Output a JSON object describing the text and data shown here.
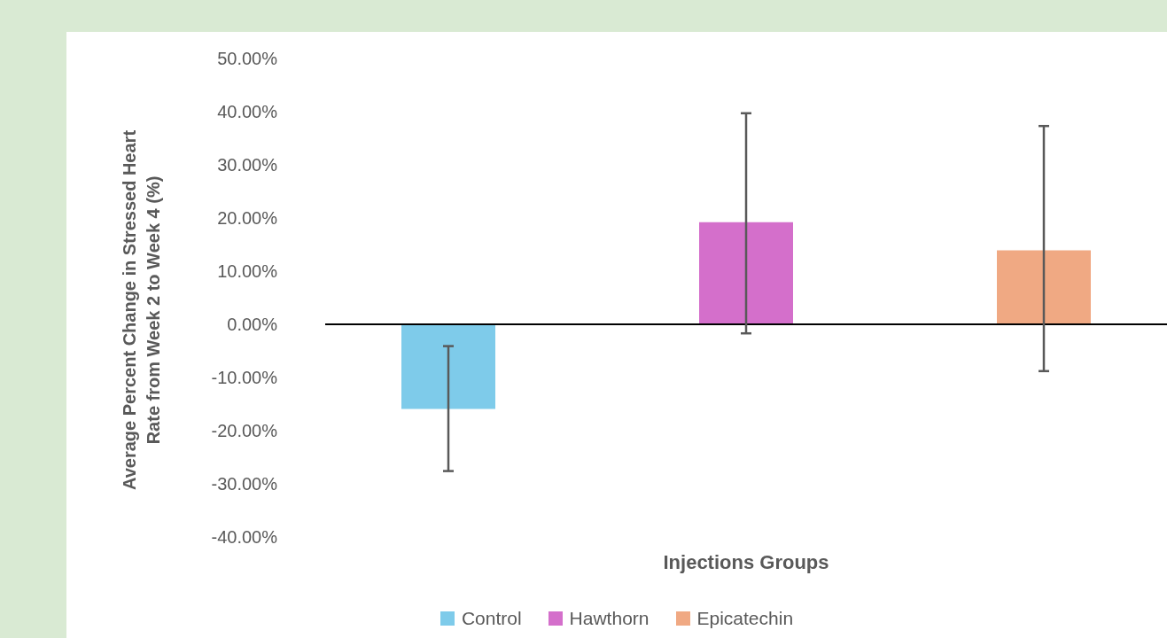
{
  "chart_data": {
    "type": "bar",
    "xlabel": "Injections Groups",
    "ylabel": "Average Percent Change in Stressed Heart Rate from Week 2 to Week 4 (%)",
    "categories": [
      null
    ],
    "series": [
      {
        "name": "Control",
        "color": "#7ecbea",
        "values": [
          -15.9
        ],
        "errors": [
          [
            -27.6,
            -4.1
          ]
        ]
      },
      {
        "name": "Hawthorn",
        "color": "#d46fcb",
        "values": [
          19.2
        ],
        "errors": [
          [
            -1.7,
            39.7
          ]
        ]
      },
      {
        "name": "Epicatechin",
        "color": "#f0a983",
        "values": [
          13.9
        ],
        "errors": [
          [
            -8.8,
            37.3
          ]
        ]
      }
    ],
    "ylim": [
      -40,
      50
    ],
    "yticks": [
      {
        "value": -40,
        "label": "-40.00%"
      },
      {
        "value": -30,
        "label": "-30.00%"
      },
      {
        "value": -20,
        "label": "-20.00%"
      },
      {
        "value": -10,
        "label": "-10.00%"
      },
      {
        "value": 0,
        "label": "0.00%"
      },
      {
        "value": 10,
        "label": "10.00%"
      },
      {
        "value": 20,
        "label": "20.00%"
      },
      {
        "value": 30,
        "label": "30.00%"
      },
      {
        "value": 40,
        "label": "40.00%"
      },
      {
        "value": 50,
        "label": "50.00%"
      }
    ],
    "legend": "bottom"
  }
}
